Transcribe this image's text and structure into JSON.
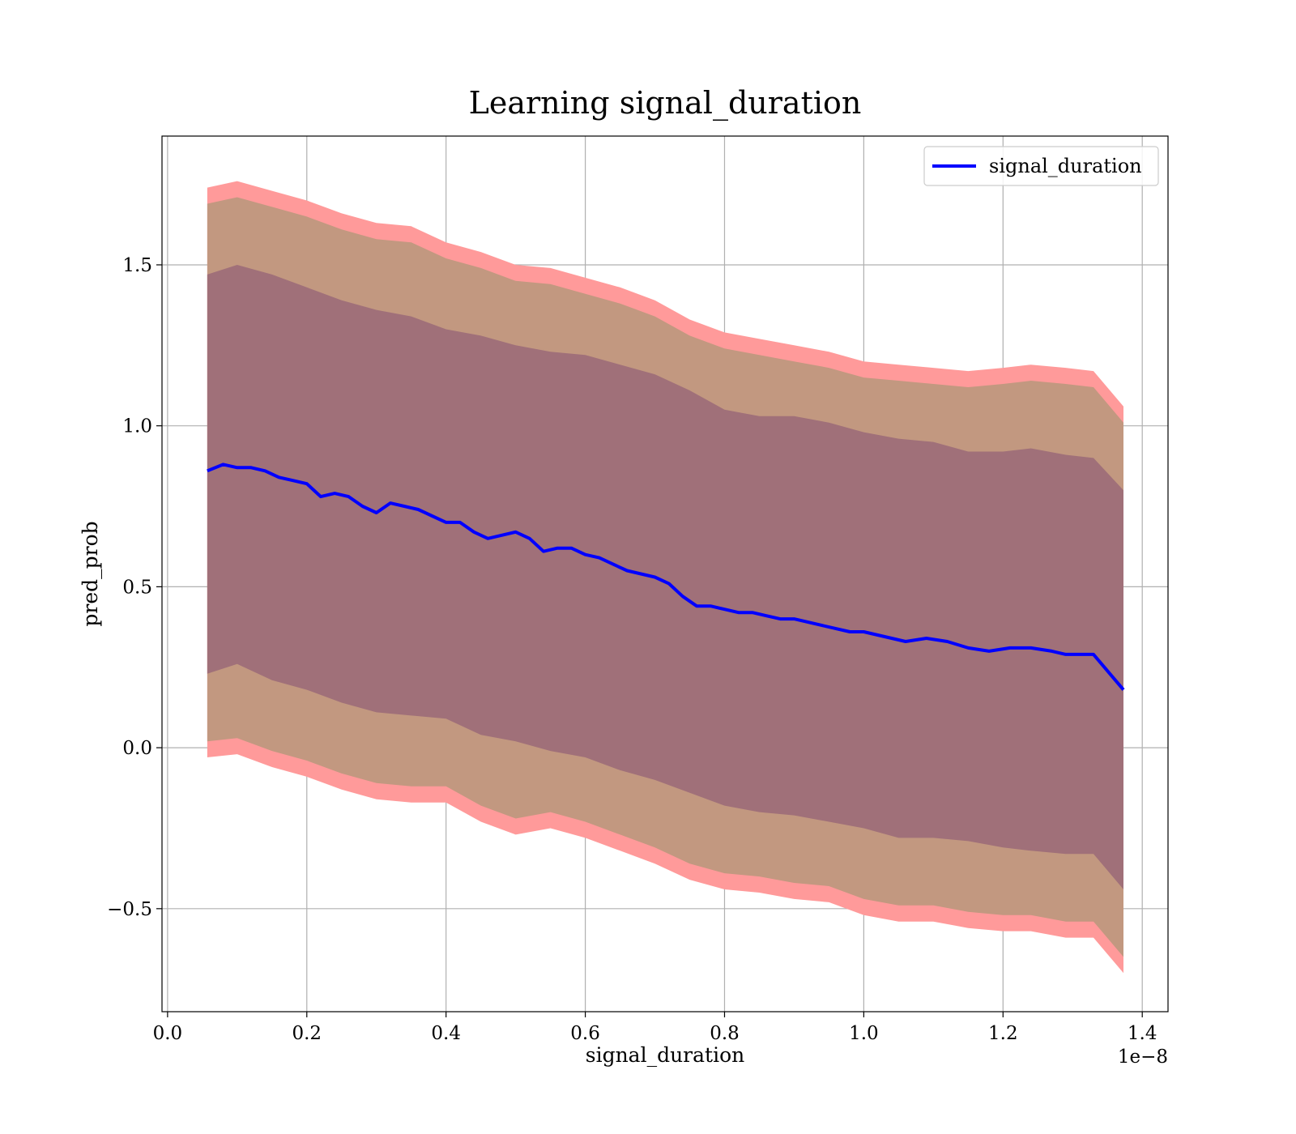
{
  "chart_data": {
    "type": "line",
    "title": "Learning signal_duration",
    "xlabel": "signal_duration",
    "ylabel": "pred_prob",
    "x_offset_text": "1e−8",
    "xlim": [
      -0.008,
      1.437
    ],
    "ylim": [
      -0.82,
      1.9
    ],
    "grid": true,
    "legend": {
      "entries": [
        "signal_duration"
      ],
      "position": "top-right"
    },
    "x_ticks": [
      0.0,
      0.2,
      0.4,
      0.6,
      0.8,
      1.0,
      1.2,
      1.4
    ],
    "x_tick_labels": [
      "0.0",
      "0.2",
      "0.4",
      "0.6",
      "0.8",
      "1.0",
      "1.2",
      "1.4"
    ],
    "y_ticks": [
      -0.5,
      0.0,
      0.5,
      1.0,
      1.5
    ],
    "y_tick_labels": [
      "−0.5",
      "0.0",
      "0.5",
      "1.0",
      "1.5"
    ],
    "series": [
      {
        "name": "signal_duration",
        "color": "#0000ff",
        "x": [
          0.057,
          0.08,
          0.1,
          0.12,
          0.14,
          0.16,
          0.18,
          0.2,
          0.22,
          0.24,
          0.26,
          0.28,
          0.3,
          0.32,
          0.34,
          0.36,
          0.38,
          0.4,
          0.42,
          0.44,
          0.46,
          0.48,
          0.5,
          0.52,
          0.54,
          0.56,
          0.58,
          0.6,
          0.62,
          0.64,
          0.66,
          0.68,
          0.7,
          0.72,
          0.74,
          0.76,
          0.78,
          0.8,
          0.82,
          0.84,
          0.86,
          0.88,
          0.9,
          0.92,
          0.94,
          0.96,
          0.98,
          1.0,
          1.02,
          1.04,
          1.06,
          1.09,
          1.12,
          1.15,
          1.18,
          1.21,
          1.24,
          1.27,
          1.29,
          1.33,
          1.373
        ],
        "y": [
          0.86,
          0.88,
          0.87,
          0.87,
          0.86,
          0.84,
          0.83,
          0.82,
          0.78,
          0.79,
          0.78,
          0.75,
          0.73,
          0.76,
          0.75,
          0.74,
          0.72,
          0.7,
          0.7,
          0.67,
          0.65,
          0.66,
          0.67,
          0.65,
          0.61,
          0.62,
          0.62,
          0.6,
          0.59,
          0.57,
          0.55,
          0.54,
          0.53,
          0.51,
          0.47,
          0.44,
          0.44,
          0.43,
          0.42,
          0.42,
          0.41,
          0.4,
          0.4,
          0.39,
          0.38,
          0.37,
          0.36,
          0.36,
          0.35,
          0.34,
          0.33,
          0.34,
          0.33,
          0.31,
          0.3,
          0.31,
          0.31,
          0.3,
          0.29,
          0.29,
          0.18
        ]
      }
    ],
    "bands": [
      {
        "name": "outer",
        "color": "#ff9a9a",
        "x": [
          0.057,
          0.1,
          0.15,
          0.2,
          0.25,
          0.3,
          0.35,
          0.4,
          0.45,
          0.5,
          0.55,
          0.6,
          0.65,
          0.7,
          0.75,
          0.8,
          0.85,
          0.9,
          0.95,
          1.0,
          1.05,
          1.1,
          1.15,
          1.2,
          1.24,
          1.29,
          1.33,
          1.373
        ],
        "upper": [
          1.74,
          1.76,
          1.73,
          1.7,
          1.66,
          1.63,
          1.62,
          1.57,
          1.54,
          1.5,
          1.49,
          1.46,
          1.43,
          1.39,
          1.33,
          1.29,
          1.27,
          1.25,
          1.23,
          1.2,
          1.19,
          1.18,
          1.17,
          1.18,
          1.19,
          1.18,
          1.17,
          1.06
        ],
        "lower": [
          -0.03,
          -0.02,
          -0.06,
          -0.09,
          -0.13,
          -0.16,
          -0.17,
          -0.17,
          -0.23,
          -0.27,
          -0.25,
          -0.28,
          -0.32,
          -0.36,
          -0.41,
          -0.44,
          -0.45,
          -0.47,
          -0.48,
          -0.52,
          -0.54,
          -0.54,
          -0.56,
          -0.57,
          -0.57,
          -0.59,
          -0.59,
          -0.7
        ]
      },
      {
        "name": "middle",
        "color": "#c29880",
        "x": [
          0.057,
          0.1,
          0.15,
          0.2,
          0.25,
          0.3,
          0.35,
          0.4,
          0.45,
          0.5,
          0.55,
          0.6,
          0.65,
          0.7,
          0.75,
          0.8,
          0.85,
          0.9,
          0.95,
          1.0,
          1.05,
          1.1,
          1.15,
          1.2,
          1.24,
          1.29,
          1.33,
          1.373
        ],
        "upper": [
          1.69,
          1.71,
          1.68,
          1.65,
          1.61,
          1.58,
          1.57,
          1.52,
          1.49,
          1.45,
          1.44,
          1.41,
          1.38,
          1.34,
          1.28,
          1.24,
          1.22,
          1.2,
          1.18,
          1.15,
          1.14,
          1.13,
          1.12,
          1.13,
          1.14,
          1.13,
          1.12,
          1.01
        ],
        "lower": [
          0.02,
          0.03,
          -0.01,
          -0.04,
          -0.08,
          -0.11,
          -0.12,
          -0.12,
          -0.18,
          -0.22,
          -0.2,
          -0.23,
          -0.27,
          -0.31,
          -0.36,
          -0.39,
          -0.4,
          -0.42,
          -0.43,
          -0.47,
          -0.49,
          -0.49,
          -0.51,
          -0.52,
          -0.52,
          -0.54,
          -0.54,
          -0.65
        ]
      },
      {
        "name": "inner",
        "color": "#a07079",
        "x": [
          0.057,
          0.1,
          0.15,
          0.2,
          0.25,
          0.3,
          0.35,
          0.4,
          0.45,
          0.5,
          0.55,
          0.6,
          0.65,
          0.7,
          0.75,
          0.8,
          0.85,
          0.9,
          0.95,
          1.0,
          1.05,
          1.1,
          1.15,
          1.2,
          1.24,
          1.29,
          1.33,
          1.373
        ],
        "upper": [
          1.47,
          1.5,
          1.47,
          1.43,
          1.39,
          1.36,
          1.34,
          1.3,
          1.28,
          1.25,
          1.23,
          1.22,
          1.19,
          1.16,
          1.11,
          1.05,
          1.03,
          1.03,
          1.01,
          0.98,
          0.96,
          0.95,
          0.92,
          0.92,
          0.93,
          0.91,
          0.9,
          0.8
        ],
        "lower": [
          0.23,
          0.26,
          0.21,
          0.18,
          0.14,
          0.11,
          0.1,
          0.09,
          0.04,
          0.02,
          -0.01,
          -0.03,
          -0.07,
          -0.1,
          -0.14,
          -0.18,
          -0.2,
          -0.21,
          -0.23,
          -0.25,
          -0.28,
          -0.28,
          -0.29,
          -0.31,
          -0.32,
          -0.33,
          -0.33,
          -0.44
        ]
      }
    ]
  }
}
